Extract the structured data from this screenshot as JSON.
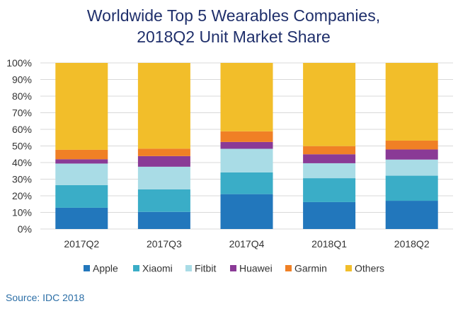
{
  "colors": {
    "Apple": "#2277BC",
    "Xiaomi": "#3AADC7",
    "Fitbit": "#A9DCE6",
    "Huawei": "#8A3A96",
    "Garmin": "#F08025",
    "Others": "#F2BE2A",
    "title": "#1F2F6B",
    "text": "#333333",
    "grid": "#D9D9D9",
    "source": "#2B6EA6"
  },
  "chart_data": {
    "type": "bar",
    "stacked": true,
    "title_lines": [
      "Worldwide Top 5 Wearables Companies,",
      "2018Q2 Unit Market Share"
    ],
    "xlabel": "",
    "ylabel": "",
    "ylim": [
      0,
      100
    ],
    "y_ticks": [
      0,
      10,
      20,
      30,
      40,
      50,
      60,
      70,
      80,
      90,
      100
    ],
    "y_tick_labels": [
      "0%",
      "10%",
      "20%",
      "30%",
      "40%",
      "50%",
      "60%",
      "70%",
      "80%",
      "90%",
      "100%"
    ],
    "grid": true,
    "legend_position": "bottom",
    "categories": [
      "2017Q2",
      "2017Q3",
      "2017Q4",
      "2018Q1",
      "2018Q2"
    ],
    "series": [
      {
        "name": "Apple",
        "values": [
          12.8,
          10.3,
          21.0,
          16.2,
          17.0
        ]
      },
      {
        "name": "Xiaomi",
        "values": [
          13.6,
          13.6,
          13.1,
          14.4,
          15.1
        ]
      },
      {
        "name": "Fitbit",
        "values": [
          13.0,
          13.6,
          14.2,
          9.0,
          9.7
        ]
      },
      {
        "name": "Huawei",
        "values": [
          2.6,
          6.4,
          4.1,
          5.4,
          6.1
        ]
      },
      {
        "name": "Garmin",
        "values": [
          5.7,
          4.5,
          6.4,
          4.9,
          5.3
        ]
      },
      {
        "name": "Others",
        "values": [
          52.3,
          51.6,
          41.2,
          50.1,
          46.8
        ]
      }
    ]
  },
  "source_text": "Source: IDC 2018"
}
